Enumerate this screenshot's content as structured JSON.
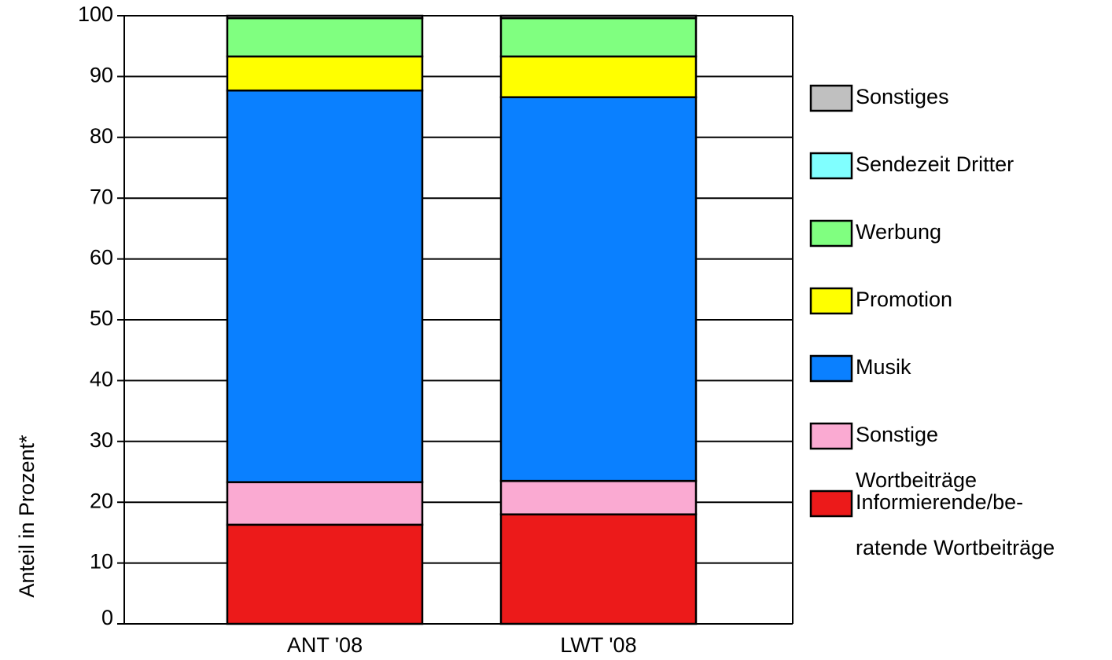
{
  "chart_data": {
    "type": "bar",
    "stacked": true,
    "categories": [
      "ANT '08",
      "LWT '08"
    ],
    "ylabel": "Anteil in Prozent*",
    "ylim": [
      0,
      100
    ],
    "yticks": [
      0,
      10,
      20,
      30,
      40,
      50,
      60,
      70,
      80,
      90,
      100
    ],
    "grid": true,
    "legend_position": "right",
    "legend_order": [
      6,
      5,
      4,
      3,
      2,
      1,
      0
    ],
    "series": [
      {
        "name_lines": [
          "Informierende/be-",
          "ratende Wortbeiträge"
        ],
        "color": "#ec1a1a",
        "values": [
          16.3,
          18.0
        ]
      },
      {
        "name_lines": [
          "Sonstige",
          "Wortbeiträge"
        ],
        "color": "#faaad2",
        "values": [
          7.0,
          5.5
        ]
      },
      {
        "name_lines": [
          "Musik"
        ],
        "color": "#0a80ff",
        "values": [
          64.4,
          63.1
        ]
      },
      {
        "name_lines": [
          "Promotion"
        ],
        "color": "#ffff00",
        "values": [
          5.6,
          6.7
        ]
      },
      {
        "name_lines": [
          "Werbung"
        ],
        "color": "#80ff80",
        "values": [
          6.3,
          6.3
        ]
      },
      {
        "name_lines": [
          "Sendezeit Dritter"
        ],
        "color": "#80ffff",
        "values": [
          0.0,
          0.0
        ]
      },
      {
        "name_lines": [
          "Sonstiges"
        ],
        "color": "#c0c0c0",
        "values": [
          0.4,
          0.4
        ]
      }
    ]
  }
}
